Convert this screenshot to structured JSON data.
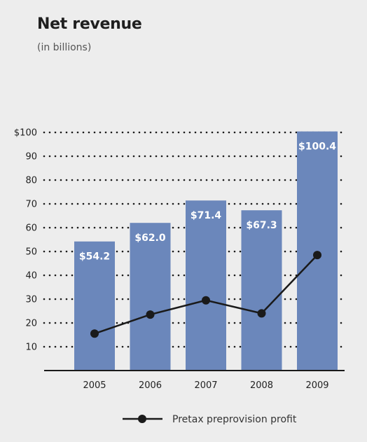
{
  "title": "Net revenue",
  "subtitle": "(in billions)",
  "chart_data": {
    "type": "bar",
    "categories": [
      "2005",
      "2006",
      "2007",
      "2008",
      "2009"
    ],
    "values": [
      54.2,
      62.0,
      71.4,
      67.3,
      100.4
    ],
    "value_labels": [
      "$54.2",
      "$62.0",
      "$71.4",
      "$67.3",
      "$100.4"
    ],
    "line_series": {
      "name": "Pretax preprovision profit",
      "values": [
        15.5,
        23.5,
        29.5,
        24.0,
        48.5
      ]
    },
    "yticks": [
      {
        "value": 100,
        "label": "$100"
      },
      {
        "value": 90,
        "label": "90"
      },
      {
        "value": 80,
        "label": "80"
      },
      {
        "value": 70,
        "label": "70"
      },
      {
        "value": 60,
        "label": "60"
      },
      {
        "value": 50,
        "label": "50"
      },
      {
        "value": 40,
        "label": "40"
      },
      {
        "value": 30,
        "label": "30"
      },
      {
        "value": 20,
        "label": "20"
      },
      {
        "value": 10,
        "label": "10"
      }
    ],
    "ylim": [
      0,
      100
    ],
    "grid": true,
    "legend_position": "bottom-center",
    "colors": {
      "bar": "#6b87bb",
      "line": "#1a1a1a",
      "grid": "#1a1a1a",
      "background": "#ededed"
    }
  }
}
